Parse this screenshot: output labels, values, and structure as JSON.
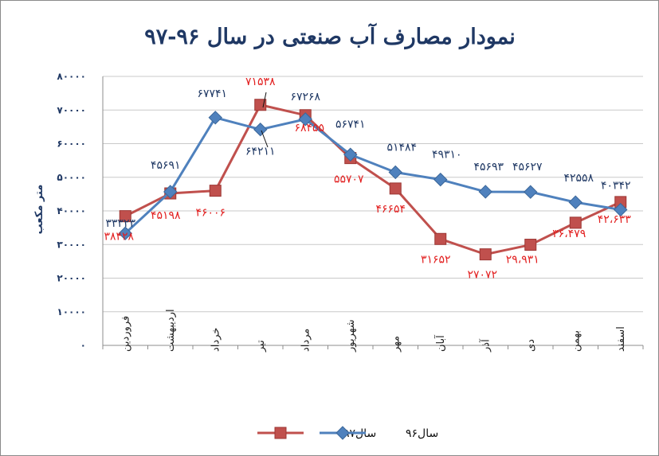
{
  "chart_data": {
    "type": "line",
    "title": "نمودار مصارف آب صنعتی در سال ۹۶-۹۷",
    "xlabel": "",
    "ylabel": "متر مکعب",
    "ylim": [
      0,
      80000
    ],
    "yticks": [
      "۰",
      "۱۰۰۰۰",
      "۲۰۰۰۰",
      "۳۰۰۰۰",
      "۴۰۰۰۰",
      "۵۰۰۰۰",
      "۶۰۰۰۰",
      "۷۰۰۰۰",
      "۸۰۰۰۰"
    ],
    "categories": [
      "فروردین",
      "اردیبهشت",
      "خرداد",
      "تیر",
      "مرداد",
      "شهریور",
      "مهر",
      "آبان",
      "آذر",
      "دی",
      "بهمن",
      "اسفند"
    ],
    "grid": true,
    "legend": "bottom",
    "series": [
      {
        "name": "سال۹۷",
        "color": "#c0504d",
        "marker": "square",
        "values": [
          38428,
          45198,
          46006,
          71538,
          68455,
          55707,
          46654,
          31652,
          27072,
          29931,
          36479,
          42633
        ],
        "labels": [
          "۳۸۴۲۸",
          "۴۵۱۹۸",
          "۴۶۰۰۶",
          "۷۱۵۳۸",
          "۶۸۴۵۵",
          "۵۵۷۰۷",
          "۴۶۶۵۴",
          "۳۱۶۵۲",
          "۲۷۰۷۲",
          "۲۹،۹۳۱",
          "۳۶،۴۷۹",
          "۴۲،۶۳۳"
        ]
      },
      {
        "name": "سال۹۶",
        "color": "#4f81bd",
        "marker": "diamond",
        "values": [
          33323,
          45691,
          67741,
          64211,
          67268,
          56741,
          51484,
          49310,
          45693,
          45627,
          42558,
          40342
        ],
        "labels": [
          "۳۳۳۲۳",
          "۴۵۶۹۱",
          "۶۷۷۴۱",
          "۶۴۲۱۱",
          "۶۷۲۶۸",
          "۵۶۷۴۱",
          "۵۱۴۸۴",
          "۴۹۳۱۰",
          "۴۵۶۹۳",
          "۴۵۶۲۷",
          "۴۲۵۵۸",
          "۴۰۳۴۲"
        ]
      }
    ]
  }
}
